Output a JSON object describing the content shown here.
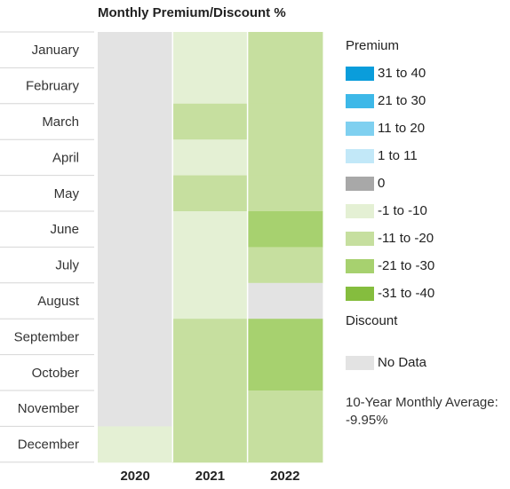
{
  "chart_data": {
    "type": "heatmap",
    "title": "Monthly Premium/Discount %",
    "months": [
      "January",
      "February",
      "March",
      "April",
      "May",
      "June",
      "July",
      "August",
      "September",
      "October",
      "November",
      "December"
    ],
    "years": [
      "2020",
      "2021",
      "2022"
    ],
    "cells": [
      [
        "No Data",
        "-1 to -10",
        "-11 to -20"
      ],
      [
        "No Data",
        "-1 to -10",
        "-11 to -20"
      ],
      [
        "No Data",
        "-11 to -20",
        "-11 to -20"
      ],
      [
        "No Data",
        "-1 to -10",
        "-11 to -20"
      ],
      [
        "No Data",
        "-11 to -20",
        "-11 to -20"
      ],
      [
        "No Data",
        "-1 to -10",
        "-21 to -30"
      ],
      [
        "No Data",
        "-1 to -10",
        "-11 to -20"
      ],
      [
        "No Data",
        "-1 to -10",
        "No Data"
      ],
      [
        "No Data",
        "-11 to -20",
        "-21 to -30"
      ],
      [
        "No Data",
        "-11 to -20",
        "-21 to -30"
      ],
      [
        "No Data",
        "-11 to -20",
        "-11 to -20"
      ],
      [
        "-1 to -10",
        "-11 to -20",
        "-11 to -20"
      ]
    ],
    "legend": {
      "premium_label": "Premium",
      "discount_label": "Discount",
      "bins": [
        {
          "label": "31 to 40",
          "color": "#0a9ddb"
        },
        {
          "label": "21 to 30",
          "color": "#3db8e8"
        },
        {
          "label": "11 to 20",
          "color": "#7fd0f0"
        },
        {
          "label": "1 to 11",
          "color": "#c2e8f8"
        },
        {
          "label": "0",
          "color": "#a8a8a8"
        },
        {
          "label": "-1 to -10",
          "color": "#e4f0d4"
        },
        {
          "label": "-11 to -20",
          "color": "#c6df9f"
        },
        {
          "label": "-21 to -30",
          "color": "#a7d16f"
        },
        {
          "label": "-31 to -40",
          "color": "#85bd3e"
        }
      ],
      "no_data": {
        "label": "No Data",
        "color": "#e3e3e3"
      }
    },
    "average_label": "10-Year Monthly Average:",
    "average_value": "-9.95%"
  }
}
